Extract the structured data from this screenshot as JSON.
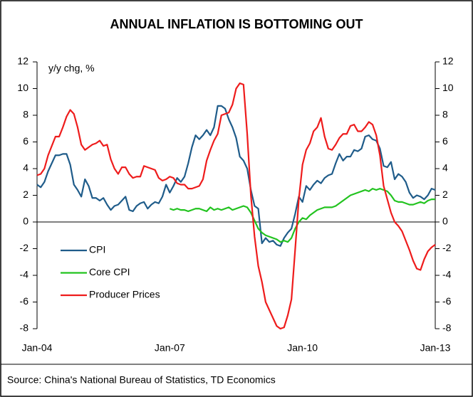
{
  "chart_data": {
    "type": "line",
    "title": "ANNUAL INFLATION IS BOTTOMING OUT",
    "y_label": "y/y chg, %",
    "source": "Source: China's National Bureau of Statistics, TD Economics",
    "categories": [
      "Jan-04",
      null,
      null,
      null,
      null,
      null,
      null,
      null,
      null,
      null,
      null,
      null,
      null,
      null,
      null,
      null,
      null,
      null,
      null,
      null,
      null,
      null,
      null,
      null,
      null,
      null,
      null,
      null,
      null,
      null,
      null,
      null,
      null,
      null,
      null,
      null,
      "Jan-07",
      null,
      null,
      null,
      null,
      null,
      null,
      null,
      null,
      null,
      null,
      null,
      null,
      null,
      null,
      null,
      null,
      null,
      null,
      null,
      null,
      null,
      null,
      null,
      null,
      null,
      null,
      null,
      null,
      null,
      null,
      null,
      null,
      null,
      null,
      null,
      "Jan-10",
      null,
      null,
      null,
      null,
      null,
      null,
      null,
      null,
      null,
      null,
      null,
      null,
      null,
      null,
      null,
      null,
      null,
      null,
      null,
      null,
      null,
      null,
      null,
      null,
      null,
      null,
      null,
      null,
      null,
      null,
      null,
      null,
      null,
      null,
      null,
      "Jan-13"
    ],
    "series": [
      {
        "name": "CPI",
        "color": "#1f5c8a",
        "values": [
          2.8,
          2.6,
          3.0,
          3.8,
          4.4,
          5.0,
          5.0,
          5.1,
          5.1,
          4.3,
          2.8,
          2.4,
          1.9,
          3.2,
          2.7,
          1.8,
          1.8,
          1.6,
          1.8,
          1.3,
          0.9,
          1.2,
          1.3,
          1.6,
          1.9,
          0.9,
          0.8,
          1.2,
          1.4,
          1.5,
          1.0,
          1.3,
          1.5,
          1.4,
          1.9,
          2.8,
          2.2,
          2.7,
          3.3,
          3.0,
          3.4,
          4.4,
          5.6,
          6.5,
          6.2,
          6.5,
          6.9,
          6.5,
          7.1,
          8.7,
          8.7,
          8.5,
          7.7,
          7.1,
          6.3,
          4.9,
          4.6,
          4.0,
          2.4,
          1.2,
          1.0,
          -1.6,
          -1.2,
          -1.5,
          -1.4,
          -1.7,
          -1.8,
          -1.2,
          -0.8,
          -0.5,
          0.6,
          1.9,
          1.5,
          2.7,
          2.4,
          2.8,
          3.1,
          2.9,
          3.3,
          3.5,
          3.6,
          4.4,
          5.1,
          4.6,
          4.9,
          4.9,
          5.4,
          5.3,
          5.5,
          6.4,
          6.5,
          6.2,
          6.1,
          5.5,
          4.2,
          4.1,
          4.5,
          3.2,
          3.6,
          3.4,
          3.0,
          2.2,
          1.8,
          2.0,
          1.9,
          1.7,
          2.0,
          2.5,
          2.4
        ]
      },
      {
        "name": "Core CPI",
        "color": "#22c31f",
        "values": [
          null,
          null,
          null,
          null,
          null,
          null,
          null,
          null,
          null,
          null,
          null,
          null,
          null,
          null,
          null,
          null,
          null,
          null,
          null,
          null,
          null,
          null,
          null,
          null,
          null,
          null,
          null,
          null,
          null,
          null,
          null,
          null,
          null,
          null,
          null,
          null,
          1.0,
          0.9,
          1.0,
          0.9,
          0.9,
          0.8,
          0.9,
          1.0,
          1.0,
          0.9,
          0.8,
          1.1,
          0.9,
          1.0,
          0.9,
          1.0,
          1.1,
          0.9,
          1.0,
          1.1,
          1.2,
          1.1,
          0.7,
          0.1,
          -0.5,
          -0.8,
          -1.0,
          -1.1,
          -1.2,
          -1.3,
          -1.5,
          -1.4,
          -1.5,
          -1.2,
          -0.5,
          0.0,
          0.3,
          0.2,
          0.5,
          0.7,
          0.9,
          1.0,
          1.1,
          1.1,
          1.1,
          1.2,
          1.4,
          1.6,
          1.8,
          2.0,
          2.1,
          2.2,
          2.3,
          2.4,
          2.3,
          2.5,
          2.4,
          2.5,
          2.4,
          2.3,
          2.0,
          1.6,
          1.5,
          1.5,
          1.4,
          1.3,
          1.3,
          1.4,
          1.5,
          1.4,
          1.6,
          1.7,
          1.7
        ]
      },
      {
        "name": "Producer Prices",
        "color": "#ee1c1c",
        "values": [
          3.5,
          3.6,
          4.0,
          5.0,
          5.7,
          6.4,
          6.4,
          7.1,
          7.9,
          8.4,
          8.1,
          7.1,
          5.8,
          5.4,
          5.6,
          5.8,
          5.9,
          6.1,
          5.7,
          5.8,
          4.7,
          4.0,
          3.6,
          4.1,
          4.1,
          3.6,
          3.3,
          3.4,
          3.4,
          4.2,
          4.1,
          4.0,
          3.9,
          3.3,
          3.1,
          3.2,
          3.4,
          3.3,
          2.9,
          2.8,
          2.8,
          2.5,
          2.5,
          2.6,
          2.7,
          3.2,
          4.6,
          5.4,
          6.1,
          6.6,
          8.0,
          8.1,
          8.2,
          8.8,
          10.0,
          10.4,
          10.3,
          6.6,
          2.0,
          -1.1,
          -3.3,
          -4.5,
          -6.0,
          -6.6,
          -7.2,
          -7.8,
          -8.0,
          -7.9,
          -7.0,
          -5.8,
          -2.1,
          1.7,
          4.3,
          5.4,
          5.9,
          6.8,
          7.1,
          7.8,
          6.4,
          5.5,
          5.4,
          5.8,
          6.3,
          6.6,
          6.6,
          7.2,
          7.3,
          6.8,
          6.8,
          7.1,
          7.5,
          7.3,
          6.5,
          5.0,
          2.7,
          1.7,
          0.7,
          0.0,
          -0.3,
          -0.7,
          -1.4,
          -2.1,
          -2.9,
          -3.5,
          -3.6,
          -2.8,
          -2.2,
          -1.9,
          -1.7
        ]
      }
    ],
    "ylim": [
      -8,
      12
    ],
    "yticks": [
      -8,
      -6,
      -4,
      -2,
      0,
      2,
      4,
      6,
      8,
      10,
      12
    ],
    "y2lim": [
      -8,
      12
    ],
    "y2ticks": [
      -8,
      -6,
      -4,
      -2,
      0,
      2,
      4,
      6,
      8,
      10,
      12
    ],
    "legend": "lower left",
    "grid": false
  }
}
